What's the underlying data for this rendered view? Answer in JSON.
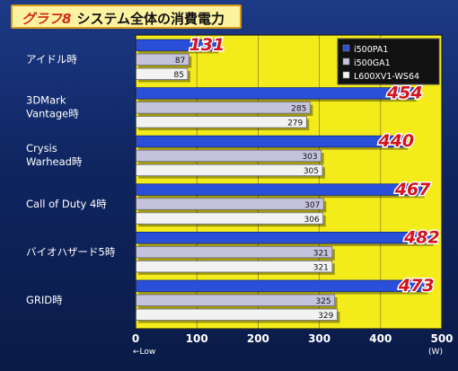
{
  "header": {
    "label": "グラフ8",
    "title": "システム全体の消費電力"
  },
  "chart_data": {
    "type": "bar",
    "orientation": "horizontal",
    "categories": [
      "アイドル時",
      "3DMark Vantage時",
      "Crysis Warhead時",
      "Call of Duty 4時",
      "バイオハザード5時",
      "GRID時"
    ],
    "category_label_lines": [
      [
        "アイドル時"
      ],
      [
        "3DMark",
        "Vantage時"
      ],
      [
        "Crysis",
        "Warhead時"
      ],
      [
        "Call of Duty 4時"
      ],
      [
        "バイオハザード5時"
      ],
      [
        "GRID時"
      ]
    ],
    "series": [
      {
        "name": "i500PA1",
        "values": [
          131,
          454,
          440,
          467,
          482,
          473
        ],
        "color": "#2a4fd8"
      },
      {
        "name": "i500GA1",
        "values": [
          87,
          285,
          303,
          307,
          321,
          325
        ],
        "color": "#c4c2dc"
      },
      {
        "name": "L600XV1-WS64",
        "values": [
          85,
          279,
          305,
          306,
          321,
          329
        ],
        "color": "#f2f2f2"
      }
    ],
    "x_ticks": [
      0,
      100,
      200,
      300,
      400,
      500
    ],
    "xlim": [
      0,
      500
    ],
    "x_unit": "(W)",
    "x_note": "←Low",
    "legend_position": "top-right",
    "grid": true,
    "plot_background": "#f4ec1a",
    "highlight_label_color": "#d4141e"
  }
}
